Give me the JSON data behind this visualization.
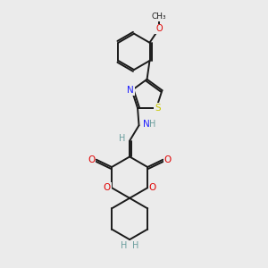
{
  "background_color": "#ebebeb",
  "bond_color": "#1a1a1a",
  "bond_width": 1.4,
  "dbo": 0.07,
  "atom_colors": {
    "C": "#1a1a1a",
    "H": "#6b9e9e",
    "N": "#2020ff",
    "O": "#e00000",
    "S": "#c8c800"
  },
  "figsize": [
    3.0,
    3.0
  ],
  "dpi": 100
}
